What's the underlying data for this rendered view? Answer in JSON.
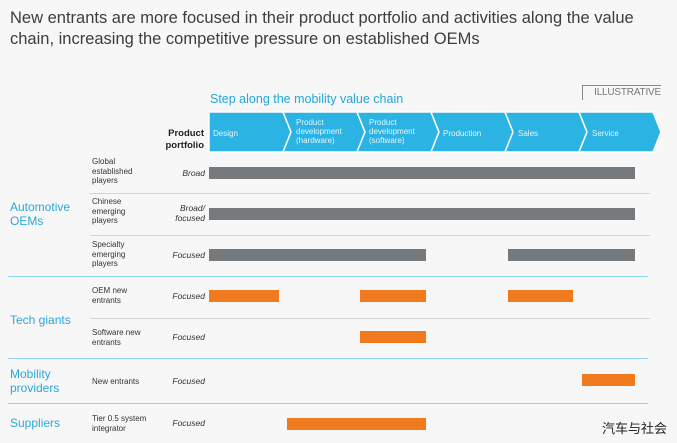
{
  "title": "New entrants are more focused in their product portfolio and activities along the value chain, increasing the competitive pressure on established OEMs",
  "badge": "ILLUSTRATIVE",
  "chain_label": "Step along the mobility value chain",
  "portfolio_header": "Product portfolio",
  "steps": [
    {
      "label": "Design"
    },
    {
      "label": "Product development (hardware)"
    },
    {
      "label": "Product development (software)"
    },
    {
      "label": "Production"
    },
    {
      "label": "Sales"
    },
    {
      "label": "Service"
    }
  ],
  "groups": [
    {
      "label": "Automotive OEMs"
    },
    {
      "label": "Tech giants"
    },
    {
      "label": "Mobility providers"
    },
    {
      "label": "Suppliers"
    }
  ],
  "rows": [
    {
      "player": "Global established players",
      "portfolio": "Broad",
      "color": "#777a7d",
      "coverage": [
        [
          0,
          6
        ]
      ]
    },
    {
      "player": "Chinese emerging players",
      "portfolio": "Broad/ focused",
      "color": "#777a7d",
      "coverage": [
        [
          0,
          6
        ]
      ]
    },
    {
      "player": "Specialty emerging players",
      "portfolio": "Focused",
      "color": "#777a7d",
      "coverage": [
        [
          0,
          3
        ],
        [
          4,
          6
        ]
      ]
    },
    {
      "player": "OEM new entrants",
      "portfolio": "Focused",
      "color": "#f17a1e",
      "coverage": [
        [
          0,
          1
        ],
        [
          2,
          3
        ],
        [
          4,
          5
        ]
      ]
    },
    {
      "player": "Software new entrants",
      "portfolio": "Focused",
      "color": "#f17a1e",
      "coverage": [
        [
          2,
          3
        ]
      ]
    },
    {
      "player": "New entrants",
      "portfolio": "Focused",
      "color": "#f17a1e",
      "coverage": [
        [
          5,
          6
        ]
      ]
    },
    {
      "player": "Tier 0.5 system integrator",
      "portfolio": "Focused",
      "color": "#f17a1e",
      "coverage": [
        [
          1,
          3
        ]
      ]
    }
  ],
  "colors": {
    "accent_blue": "#29a8d8",
    "chevron_blue": "#2bb3e3",
    "established_grey": "#777a7d",
    "new_entrant_orange": "#f17a1e"
  },
  "watermark": "汽车与社会"
}
